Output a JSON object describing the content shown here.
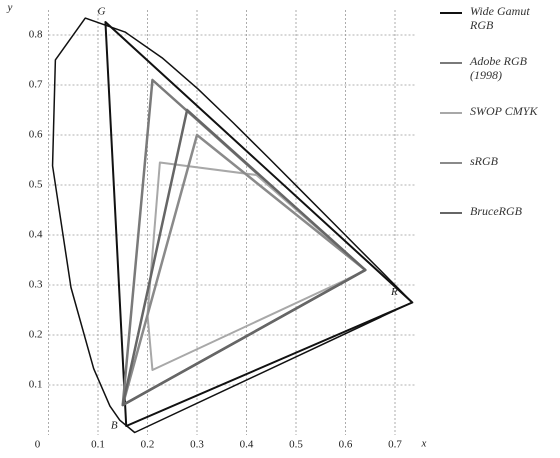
{
  "chart_data": {
    "type": "chromaticity",
    "xlabel": "x",
    "ylabel": "y",
    "xlim": [
      0,
      0.74
    ],
    "ylim": [
      0,
      0.85
    ],
    "xticks": [
      0,
      0.1,
      0.2,
      0.3,
      0.4,
      0.5,
      0.6,
      0.7
    ],
    "yticks": [
      0.1,
      0.2,
      0.3,
      0.4,
      0.5,
      0.6,
      0.7,
      0.8
    ],
    "grid": true,
    "locus": {
      "color": "#111111",
      "x": [
        0.1741,
        0.144,
        0.1241,
        0.0913,
        0.0454,
        0.0082,
        0.0139,
        0.0743,
        0.1547,
        0.2296,
        0.3016,
        0.3731,
        0.4441,
        0.5125,
        0.5752,
        0.627,
        0.6658,
        0.6915,
        0.7347
      ],
      "y": [
        0.005,
        0.0297,
        0.0578,
        0.1327,
        0.295,
        0.5384,
        0.7502,
        0.8338,
        0.8059,
        0.7543,
        0.6923,
        0.6245,
        0.5547,
        0.4866,
        0.4242,
        0.3725,
        0.334,
        0.3083,
        0.2653
      ]
    },
    "series": [
      {
        "name": "Wide Gamut RGB",
        "color": "#111111",
        "width": 2,
        "x": [
          0.735,
          0.115,
          0.157
        ],
        "y": [
          0.265,
          0.826,
          0.018
        ]
      },
      {
        "name": "Adobe RGB (1998)",
        "color": "#7a7a7a",
        "width": 2.5,
        "x": [
          0.64,
          0.21,
          0.15
        ],
        "y": [
          0.33,
          0.71,
          0.06
        ]
      },
      {
        "name": "SWOP CMYK",
        "color": "#a8a8a8",
        "width": 2,
        "x": [
          0.225,
          0.42,
          0.64,
          0.6,
          0.21,
          0.2
        ],
        "y": [
          0.545,
          0.52,
          0.33,
          0.31,
          0.13,
          0.24
        ]
      },
      {
        "name": "sRGB",
        "color": "#8a8a8a",
        "width": 2.5,
        "x": [
          0.64,
          0.3,
          0.15
        ],
        "y": [
          0.33,
          0.6,
          0.06
        ]
      },
      {
        "name": "BruceRGB",
        "color": "#666666",
        "width": 2.5,
        "x": [
          0.64,
          0.28,
          0.15
        ],
        "y": [
          0.33,
          0.65,
          0.06
        ]
      }
    ],
    "annotations": [
      {
        "text": "G",
        "x": 0.115,
        "y": 0.826
      },
      {
        "text": "R",
        "x": 0.735,
        "y": 0.265
      },
      {
        "text": "B",
        "x": 0.157,
        "y": 0.018
      }
    ]
  }
}
